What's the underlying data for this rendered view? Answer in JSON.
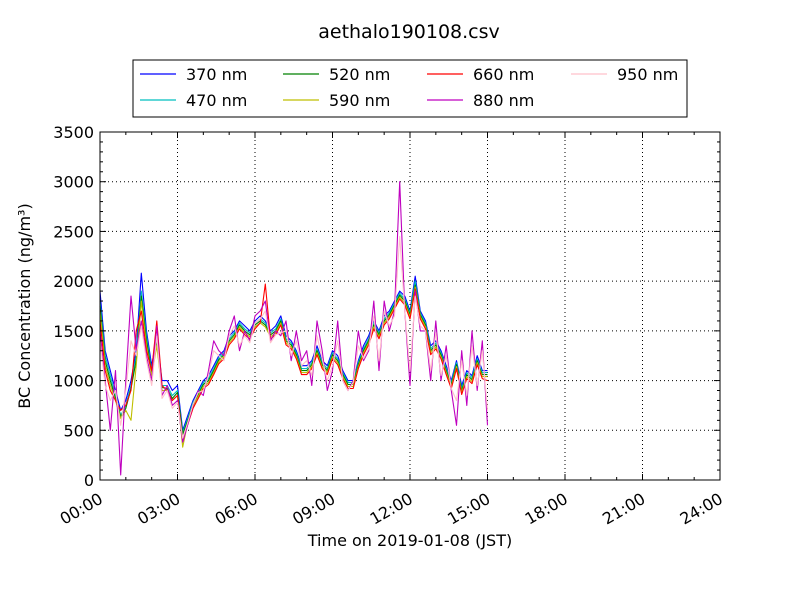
{
  "chart_data": {
    "type": "line",
    "title": "aethalo190108.csv",
    "xlabel": "Time on 2019-01-08 (JST)",
    "ylabel": "BC Concentration (ng/m³)",
    "xlim": [
      0,
      24
    ],
    "ylim": [
      0,
      3500
    ],
    "grid": true,
    "legend_placement": "top",
    "x_tick_labels": [
      "00:00",
      "03:00",
      "06:00",
      "09:00",
      "12:00",
      "15:00",
      "18:00",
      "21:00",
      "24:00"
    ],
    "y_tick_labels": [
      "0",
      "500",
      "1000",
      "1500",
      "2000",
      "2500",
      "3000",
      "3500"
    ],
    "x": [
      0.0,
      0.2,
      0.4,
      0.6,
      0.8,
      1.0,
      1.2,
      1.4,
      1.6,
      1.8,
      2.0,
      2.2,
      2.4,
      2.6,
      2.8,
      3.0,
      3.2,
      3.4,
      3.6,
      3.8,
      4.0,
      4.2,
      4.4,
      4.6,
      4.8,
      5.0,
      5.2,
      5.4,
      5.6,
      5.8,
      6.0,
      6.2,
      6.4,
      6.6,
      6.8,
      7.0,
      7.2,
      7.4,
      7.6,
      7.8,
      8.0,
      8.2,
      8.4,
      8.6,
      8.8,
      9.0,
      9.2,
      9.4,
      9.6,
      9.8,
      10.0,
      10.2,
      10.4,
      10.6,
      10.8,
      11.0,
      11.2,
      11.4,
      11.6,
      11.8,
      12.0,
      12.2,
      12.4,
      12.6,
      12.8,
      13.0,
      13.2,
      13.4,
      13.6,
      13.8,
      14.0,
      14.2,
      14.4,
      14.6,
      14.8,
      15.0
    ],
    "series": [
      {
        "name": "370 nm",
        "color": "#0000ff",
        "values": [
          1900,
          1300,
          1100,
          900,
          700,
          800,
          1000,
          1300,
          2080,
          1500,
          1150,
          1450,
          1000,
          1000,
          900,
          950,
          500,
          650,
          800,
          900,
          1000,
          1050,
          1150,
          1250,
          1300,
          1450,
          1500,
          1600,
          1550,
          1500,
          1600,
          1650,
          1600,
          1500,
          1550,
          1650,
          1450,
          1400,
          1300,
          1150,
          1150,
          1200,
          1350,
          1200,
          1150,
          1300,
          1250,
          1100,
          1000,
          1000,
          1200,
          1350,
          1450,
          1600,
          1500,
          1650,
          1700,
          1800,
          1900,
          1850,
          1700,
          2050,
          1700,
          1600,
          1350,
          1400,
          1300,
          1150,
          1000,
          1200,
          950,
          1100,
          1050,
          1250,
          1100,
          1100
        ]
      },
      {
        "name": "470 nm",
        "color": "#00bfbf",
        "values": [
          1800,
          1250,
          1050,
          850,
          650,
          750,
          950,
          1250,
          1900,
          1450,
          1100,
          1400,
          950,
          950,
          850,
          900,
          480,
          620,
          780,
          880,
          980,
          1020,
          1120,
          1230,
          1280,
          1420,
          1480,
          1580,
          1520,
          1480,
          1580,
          1620,
          1580,
          1480,
          1520,
          1620,
          1420,
          1380,
          1280,
          1120,
          1120,
          1180,
          1320,
          1180,
          1120,
          1280,
          1220,
          1080,
          980,
          980,
          1180,
          1320,
          1420,
          1580,
          1480,
          1620,
          1680,
          1780,
          1880,
          1820,
          1680,
          2000,
          1680,
          1580,
          1320,
          1380,
          1280,
          1120,
          980,
          1180,
          920,
          1080,
          1030,
          1220,
          1080,
          1080
        ]
      },
      {
        "name": "520 nm",
        "color": "#008000",
        "values": [
          1750,
          1200,
          1000,
          820,
          640,
          720,
          920,
          1200,
          1850,
          1400,
          1080,
          1380,
          930,
          920,
          820,
          880,
          460,
          600,
          760,
          860,
          960,
          1000,
          1100,
          1210,
          1260,
          1400,
          1460,
          1560,
          1500,
          1460,
          1560,
          1600,
          1560,
          1460,
          1500,
          1600,
          1400,
          1360,
          1260,
          1100,
          1100,
          1160,
          1300,
          1160,
          1100,
          1260,
          1200,
          1060,
          960,
          960,
          1160,
          1300,
          1400,
          1560,
          1460,
          1600,
          1660,
          1760,
          1860,
          1800,
          1660,
          1960,
          1660,
          1560,
          1300,
          1360,
          1260,
          1100,
          960,
          1160,
          900,
          1060,
          1010,
          1200,
          1060,
          1060
        ]
      },
      {
        "name": "590 nm",
        "color": "#bfbf00",
        "values": [
          1700,
          1150,
          950,
          800,
          620,
          700,
          600,
          1150,
          1800,
          1350,
          1050,
          1350,
          900,
          900,
          800,
          850,
          330,
          580,
          740,
          840,
          940,
          980,
          1080,
          1190,
          1240,
          1380,
          1440,
          1540,
          1480,
          1440,
          1540,
          1580,
          1540,
          1440,
          1480,
          1580,
          1380,
          1340,
          1240,
          1080,
          1080,
          1140,
          1280,
          1140,
          1080,
          1240,
          1180,
          1040,
          940,
          940,
          1140,
          1280,
          1380,
          1540,
          1440,
          1580,
          1640,
          1740,
          1840,
          1780,
          1640,
          1940,
          1640,
          1540,
          1280,
          1340,
          1240,
          1080,
          940,
          1140,
          880,
          1040,
          990,
          1180,
          1040,
          1040
        ]
      },
      {
        "name": "660 nm",
        "color": "#ff0000",
        "values": [
          1600,
          1100,
          900,
          800,
          700,
          750,
          900,
          1500,
          1700,
          1300,
          1100,
          1600,
          950,
          900,
          800,
          850,
          400,
          560,
          720,
          820,
          920,
          960,
          1060,
          1170,
          1220,
          1360,
          1420,
          1520,
          1460,
          1420,
          1520,
          1580,
          1970,
          1420,
          1460,
          1560,
          1360,
          1320,
          1220,
          1060,
          1060,
          1120,
          1260,
          1120,
          1060,
          1220,
          1160,
          1020,
          920,
          920,
          1120,
          1260,
          1360,
          1520,
          1420,
          1560,
          1620,
          1720,
          1820,
          1760,
          1620,
          1920,
          1620,
          1520,
          1260,
          1320,
          1220,
          1060,
          920,
          1120,
          860,
          1020,
          970,
          1160,
          1020,
          1000
        ]
      },
      {
        "name": "880 nm",
        "color": "#bf00bf",
        "values": [
          1500,
          1000,
          500,
          1100,
          50,
          1000,
          1850,
          1300,
          1600,
          1250,
          1000,
          1550,
          850,
          950,
          750,
          800,
          380,
          560,
          750,
          900,
          850,
          1100,
          1400,
          1300,
          1250,
          1500,
          1650,
          1300,
          1500,
          1400,
          1650,
          1700,
          1800,
          1400,
          1500,
          1450,
          1600,
          1200,
          1500,
          1200,
          1300,
          950,
          1600,
          1300,
          900,
          1100,
          1600,
          1000,
          900,
          1000,
          1500,
          1200,
          1300,
          1800,
          1100,
          1800,
          1500,
          1700,
          3000,
          1700,
          950,
          1900,
          1500,
          1500,
          1000,
          1600,
          1000,
          1350,
          900,
          550,
          1300,
          750,
          1500,
          900,
          1400,
          550
        ]
      },
      {
        "name": "950 nm",
        "color": "#ffc0cb",
        "values": [
          1400,
          950,
          800,
          900,
          550,
          900,
          1400,
          1250,
          1550,
          1200,
          950,
          1450,
          820,
          900,
          720,
          780,
          420,
          580,
          760,
          880,
          900,
          1050,
          1300,
          1250,
          1200,
          1450,
          1550,
          1350,
          1450,
          1380,
          1580,
          1620,
          1700,
          1380,
          1460,
          1480,
          1500,
          1250,
          1400,
          1150,
          1200,
          1050,
          1450,
          1220,
          1000,
          1150,
          1400,
          1000,
          900,
          980,
          1350,
          1220,
          1320,
          1650,
          1200,
          1700,
          1550,
          1650,
          2450,
          1700,
          1100,
          1850,
          1550,
          1500,
          1100,
          1480,
          1050,
          1250,
          920,
          800,
          1200,
          850,
          1350,
          950,
          1300,
          700
        ]
      }
    ]
  }
}
